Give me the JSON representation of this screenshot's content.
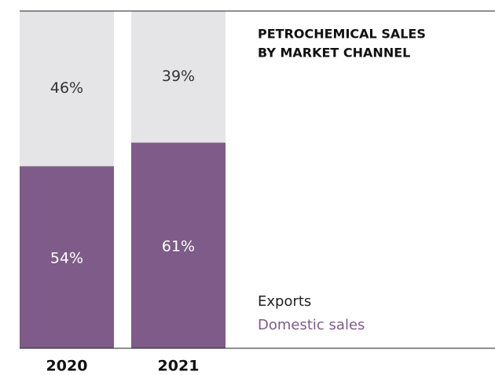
{
  "chart_data": {
    "type": "stacked_bar",
    "title": [
      "PETROCHEMICAL SALES",
      "BY MARKET CHANNEL"
    ],
    "categories": [
      "2020",
      "2021"
    ],
    "series": [
      {
        "name": "Domestic sales",
        "color": "#7e5b88",
        "values": [
          54,
          61
        ],
        "value_labels": [
          "54%",
          "61%"
        ]
      },
      {
        "name": "Exports",
        "color": "#e5e5e7",
        "values": [
          46,
          39
        ],
        "value_labels": [
          "46%",
          "39%"
        ]
      }
    ],
    "ylim": [
      0,
      100
    ]
  }
}
